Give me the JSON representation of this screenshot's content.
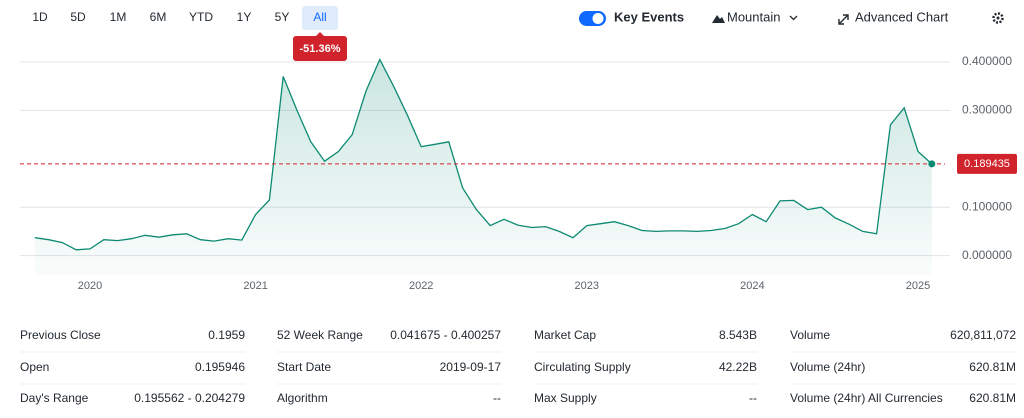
{
  "toolbar": {
    "ranges": [
      "1D",
      "5D",
      "1M",
      "6M",
      "YTD",
      "1Y",
      "5Y",
      "All"
    ],
    "selected_range": 7,
    "change": "-51.36%",
    "key_events": "Key Events",
    "chart_style": "Mountain",
    "advanced": "Advanced Chart"
  },
  "chart_data": {
    "type": "area",
    "color": "#0d8a72",
    "categories": [
      null,
      null,
      null,
      null,
      "2020",
      null,
      null,
      null,
      null,
      null,
      null,
      null,
      null,
      null,
      null,
      null,
      "2021",
      null,
      null,
      null,
      null,
      null,
      null,
      null,
      null,
      null,
      null,
      null,
      "2022",
      null,
      null,
      null,
      null,
      null,
      null,
      null,
      null,
      null,
      null,
      null,
      "2023",
      null,
      null,
      null,
      null,
      null,
      null,
      null,
      null,
      null,
      null,
      null,
      "2024",
      null,
      null,
      null,
      null,
      null,
      null,
      null,
      null,
      null,
      null,
      null,
      "2025",
      null
    ],
    "values": [
      0.037,
      0.033,
      0.027,
      0.012,
      0.014,
      0.033,
      0.031,
      0.035,
      0.042,
      0.038,
      0.043,
      0.045,
      0.033,
      0.03,
      0.035,
      0.032,
      0.085,
      0.115,
      0.37,
      0.3,
      0.235,
      0.195,
      0.215,
      0.25,
      0.34,
      0.405,
      0.35,
      0.29,
      0.225,
      0.23,
      0.235,
      0.14,
      0.095,
      0.062,
      0.075,
      0.063,
      0.058,
      0.06,
      0.05,
      0.037,
      0.062,
      0.066,
      0.07,
      0.062,
      0.052,
      0.05,
      0.051,
      0.051,
      0.05,
      0.052,
      0.056,
      0.066,
      0.085,
      0.07,
      0.113,
      0.114,
      0.095,
      0.1,
      0.078,
      0.065,
      0.05,
      0.045,
      0.27,
      0.305,
      0.215,
      0.189435
    ],
    "ylim": [
      -0.04,
      0.435
    ],
    "yticks": [
      {
        "value": 0,
        "label": "0.000000"
      },
      {
        "value": 0.1,
        "label": "0.100000"
      },
      {
        "value": 0.3,
        "label": "0.300000"
      },
      {
        "value": 0.4,
        "label": "0.400000"
      }
    ],
    "grid": true,
    "last_price": 0.189435,
    "reference_color": "#d0232b"
  },
  "stats": [
    [
      {
        "label": "Previous Close",
        "value": "0.1959"
      },
      {
        "label": "52 Week Range",
        "value": "0.041675 - 0.400257"
      },
      {
        "label": "Market Cap",
        "value": "8.543B"
      },
      {
        "label": "Volume",
        "value": "620,811,072"
      }
    ],
    [
      {
        "label": "Open",
        "value": "0.195946"
      },
      {
        "label": "Start Date",
        "value": "2019-09-17"
      },
      {
        "label": "Circulating Supply",
        "value": "42.22B"
      },
      {
        "label": "Volume (24hr)",
        "value": "620.81M"
      }
    ],
    [
      {
        "label": "Day's Range",
        "value": "0.195562 - 0.204279"
      },
      {
        "label": "Algorithm",
        "value": "--"
      },
      {
        "label": "Max Supply",
        "value": "--"
      },
      {
        "label": "Volume (24hr) All Currencies",
        "value": "620.81M"
      }
    ]
  ]
}
